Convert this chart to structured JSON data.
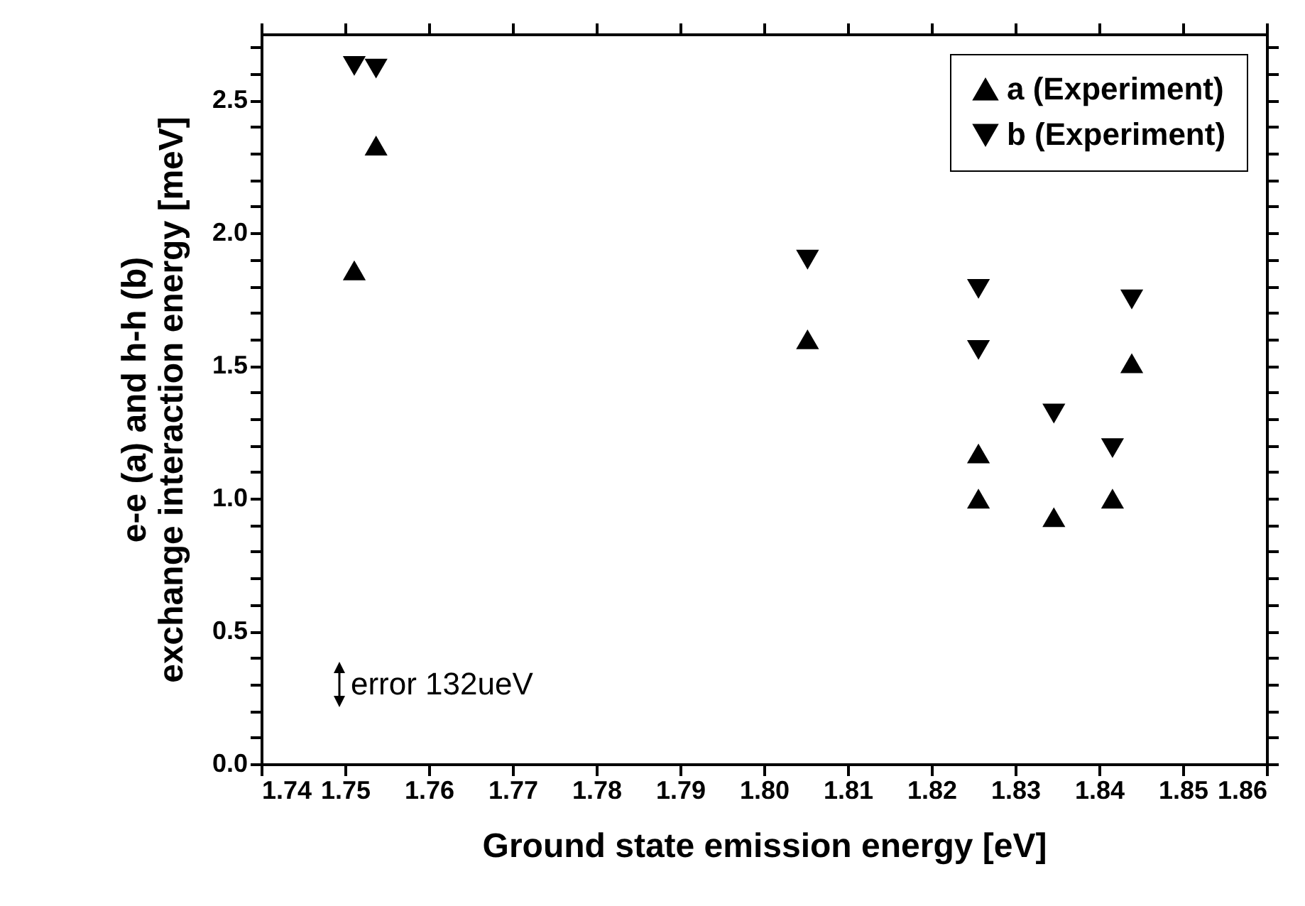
{
  "chart_data": {
    "type": "scatter",
    "xlabel": "Ground state emission energy [eV]",
    "ylabel": "e-e (a) and h-h (b)\nexchange interaction energy  [meV]",
    "xlim": [
      1.74,
      1.86
    ],
    "ylim": [
      0,
      2.75
    ],
    "xticks": [
      {
        "value": 1.74,
        "label": "1.74"
      },
      {
        "value": 1.75,
        "label": "1.75"
      },
      {
        "value": 1.76,
        "label": "1.76"
      },
      {
        "value": 1.77,
        "label": "1.77"
      },
      {
        "value": 1.78,
        "label": "1.78"
      },
      {
        "value": 1.79,
        "label": "1.79"
      },
      {
        "value": 1.8,
        "label": "1.80"
      },
      {
        "value": 1.81,
        "label": "1.81"
      },
      {
        "value": 1.82,
        "label": "1.82"
      },
      {
        "value": 1.83,
        "label": "1.83"
      },
      {
        "value": 1.84,
        "label": "1.84"
      },
      {
        "value": 1.85,
        "label": "1.85"
      },
      {
        "value": 1.86,
        "label": "1.86"
      }
    ],
    "yticks": [
      {
        "value": 0,
        "label": "0.0"
      },
      {
        "value": 0.1,
        "label": null
      },
      {
        "value": 0.2,
        "label": null
      },
      {
        "value": 0.3,
        "label": null
      },
      {
        "value": 0.4,
        "label": null
      },
      {
        "value": 0.5,
        "label": "0.5"
      },
      {
        "value": 0.6,
        "label": null
      },
      {
        "value": 0.7,
        "label": null
      },
      {
        "value": 0.8,
        "label": null
      },
      {
        "value": 0.9,
        "label": null
      },
      {
        "value": 1,
        "label": "1.0"
      },
      {
        "value": 1.1,
        "label": null
      },
      {
        "value": 1.2,
        "label": null
      },
      {
        "value": 1.3,
        "label": null
      },
      {
        "value": 1.4,
        "label": null
      },
      {
        "value": 1.5,
        "label": "1.5"
      },
      {
        "value": 1.6,
        "label": null
      },
      {
        "value": 1.7,
        "label": null
      },
      {
        "value": 1.8,
        "label": null
      },
      {
        "value": 1.9,
        "label": null
      },
      {
        "value": 2,
        "label": "2.0"
      },
      {
        "value": 2.1,
        "label": null
      },
      {
        "value": 2.2,
        "label": null
      },
      {
        "value": 2.3,
        "label": null
      },
      {
        "value": 2.4,
        "label": null
      },
      {
        "value": 2.5,
        "label": "2.5"
      },
      {
        "value": 2.6,
        "label": null
      },
      {
        "value": 2.7,
        "label": null
      }
    ],
    "legend": "top right",
    "grid": false,
    "annotations": [
      "error 132ueV"
    ],
    "series": [
      {
        "name": "a (Experiment)",
        "color": "#000000",
        "marker": "triangle",
        "x": [
          1.7511,
          1.7537,
          1.8052,
          1.8256,
          1.8256,
          1.8346,
          1.8416,
          1.8439
        ],
        "values": [
          1.86,
          2.33,
          1.6,
          1.17,
          1.0,
          0.93,
          1.0,
          1.51
        ]
      },
      {
        "name": "b (Experiment)",
        "color": "#000000",
        "marker": "triangle-down",
        "x": [
          1.7511,
          1.7537,
          1.8052,
          1.8256,
          1.8256,
          1.8346,
          1.8416,
          1.8439
        ],
        "values": [
          2.63,
          2.62,
          1.9,
          1.79,
          1.56,
          1.32,
          1.19,
          1.75
        ]
      }
    ]
  }
}
